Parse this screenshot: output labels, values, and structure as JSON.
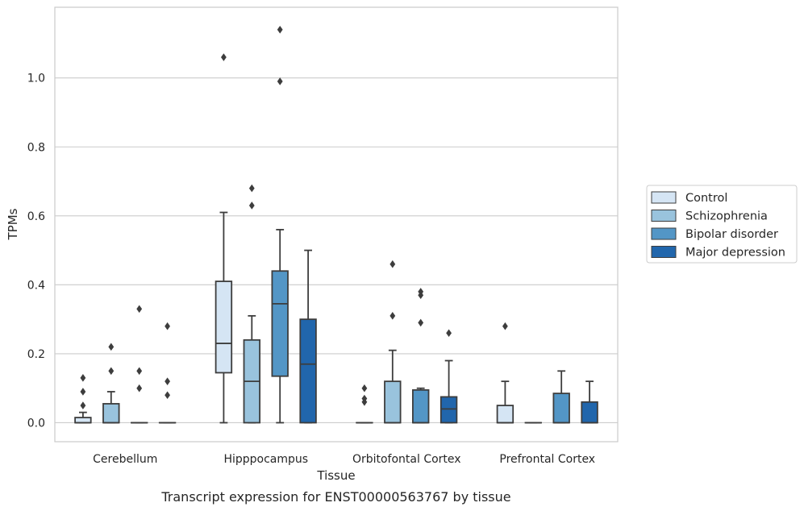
{
  "chart_data": {
    "type": "boxplot",
    "caption": "Transcript expression for ENST00000563767 by tissue",
    "xlabel": "Tissue",
    "ylabel": "TPMs",
    "ylim": [
      -0.055,
      1.205
    ],
    "yticks": [
      0.0,
      0.2,
      0.4,
      0.6,
      0.8,
      1.0
    ],
    "ytick_labels": [
      "0.0",
      "0.2",
      "0.4",
      "0.6",
      "0.8",
      "1.0"
    ],
    "grid": "horizontal",
    "legend_position": "right",
    "categories": [
      "Cerebellum",
      "Hipppocampus",
      "Orbitofontal Cortex",
      "Prefrontal Cortex"
    ],
    "series": [
      {
        "name": "Control",
        "color": "#d5e5f4",
        "boxes": [
          {
            "q1": 0.0,
            "median": 0.0,
            "q3": 0.015,
            "wlo": 0.0,
            "whi": 0.03,
            "outliers": [
              0.05,
              0.09,
              0.13
            ]
          },
          {
            "q1": 0.145,
            "median": 0.23,
            "q3": 0.41,
            "wlo": 0.0,
            "whi": 0.61,
            "outliers": [
              1.06
            ]
          },
          {
            "q1": 0.0,
            "median": 0.0,
            "q3": 0.0,
            "wlo": 0.0,
            "whi": 0.0,
            "outliers": [
              0.06,
              0.07,
              0.1
            ]
          },
          {
            "q1": 0.0,
            "median": 0.0,
            "q3": 0.05,
            "wlo": 0.0,
            "whi": 0.12,
            "outliers": [
              0.28
            ]
          }
        ]
      },
      {
        "name": "Schizophrenia",
        "color": "#99c3dd",
        "boxes": [
          {
            "q1": 0.0,
            "median": 0.0,
            "q3": 0.055,
            "wlo": 0.0,
            "whi": 0.09,
            "outliers": [
              0.15,
              0.22
            ]
          },
          {
            "q1": 0.0,
            "median": 0.12,
            "q3": 0.24,
            "wlo": 0.0,
            "whi": 0.31,
            "outliers": [
              0.63,
              0.68
            ]
          },
          {
            "q1": 0.0,
            "median": 0.0,
            "q3": 0.12,
            "wlo": 0.0,
            "whi": 0.21,
            "outliers": [
              0.31,
              0.46
            ]
          },
          {
            "q1": 0.0,
            "median": 0.0,
            "q3": 0.0,
            "wlo": 0.0,
            "whi": 0.0,
            "outliers": []
          }
        ]
      },
      {
        "name": "Bipolar disorder",
        "color": "#5396c6",
        "boxes": [
          {
            "q1": 0.0,
            "median": 0.0,
            "q3": 0.0,
            "wlo": 0.0,
            "whi": 0.0,
            "outliers": [
              0.1,
              0.15,
              0.33
            ]
          },
          {
            "q1": 0.135,
            "median": 0.345,
            "q3": 0.44,
            "wlo": 0.0,
            "whi": 0.56,
            "outliers": [
              0.99,
              1.14
            ]
          },
          {
            "q1": 0.0,
            "median": 0.0,
            "q3": 0.095,
            "wlo": 0.0,
            "whi": 0.1,
            "outliers": [
              0.29,
              0.37,
              0.38
            ]
          },
          {
            "q1": 0.0,
            "median": 0.0,
            "q3": 0.085,
            "wlo": 0.0,
            "whi": 0.15,
            "outliers": []
          }
        ]
      },
      {
        "name": "Major depression",
        "color": "#2166ac",
        "boxes": [
          {
            "q1": 0.0,
            "median": 0.0,
            "q3": 0.0,
            "wlo": 0.0,
            "whi": 0.0,
            "outliers": [
              0.08,
              0.12,
              0.28
            ]
          },
          {
            "q1": 0.0,
            "median": 0.17,
            "q3": 0.3,
            "wlo": 0.0,
            "whi": 0.5,
            "outliers": []
          },
          {
            "q1": 0.0,
            "median": 0.04,
            "q3": 0.075,
            "wlo": 0.0,
            "whi": 0.18,
            "outliers": [
              0.26
            ]
          },
          {
            "q1": 0.0,
            "median": 0.0,
            "q3": 0.06,
            "wlo": 0.0,
            "whi": 0.12,
            "outliers": []
          }
        ]
      }
    ]
  }
}
